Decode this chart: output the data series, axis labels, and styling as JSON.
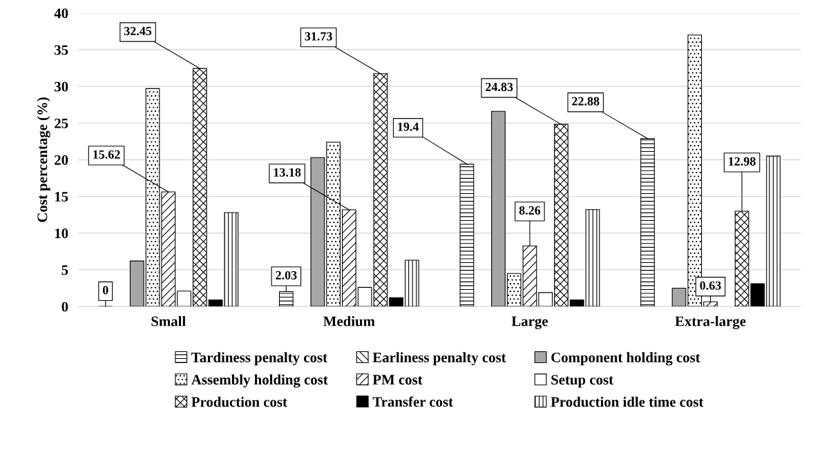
{
  "chart_data": {
    "type": "bar",
    "ylabel": "Cost percentage (%)",
    "categories": [
      "Small",
      "Medium",
      "Large",
      "Extra-large"
    ],
    "ylim": [
      0,
      40
    ],
    "yticks": [
      0,
      5,
      10,
      15,
      20,
      25,
      30,
      35,
      40
    ],
    "grid": "y",
    "legend": "bottom",
    "series": [
      {
        "name": "Tardiness penalty cost",
        "color": "#000000",
        "values": [
          0,
          2.03,
          19.4,
          22.88
        ],
        "value_labels": [
          "0",
          "2.03",
          "19.4",
          "22.88"
        ]
      },
      {
        "name": "Earliness penalty cost",
        "color": "#000000",
        "values": [
          0,
          0,
          0,
          0
        ]
      },
      {
        "name": "Component holding cost",
        "color": "#a6a6a6",
        "values": [
          6.2,
          20.3,
          26.6,
          2.5
        ]
      },
      {
        "name": "Assembly holding cost",
        "color": "#000000",
        "values": [
          29.7,
          22.4,
          4.5,
          37.0
        ]
      },
      {
        "name": "PM cost",
        "color": "#000000",
        "values": [
          15.62,
          13.18,
          8.26,
          0.63
        ],
        "value_labels": [
          "15.62",
          "13.18",
          "8.26",
          "0.63"
        ]
      },
      {
        "name": "Setup cost",
        "color": "#ffffff",
        "values": [
          2.1,
          2.6,
          1.9,
          0
        ]
      },
      {
        "name": "Production cost",
        "color": "#000000",
        "values": [
          32.45,
          31.73,
          24.83,
          12.98
        ],
        "value_labels": [
          "32.45",
          "31.73",
          "24.83",
          "12.98"
        ]
      },
      {
        "name": "Transfer cost",
        "color": "#000000",
        "values": [
          0.9,
          1.2,
          0.9,
          3.1
        ]
      },
      {
        "name": "Production idle time cost",
        "color": "#000000",
        "values": [
          12.8,
          6.3,
          13.2,
          20.5
        ]
      }
    ]
  }
}
